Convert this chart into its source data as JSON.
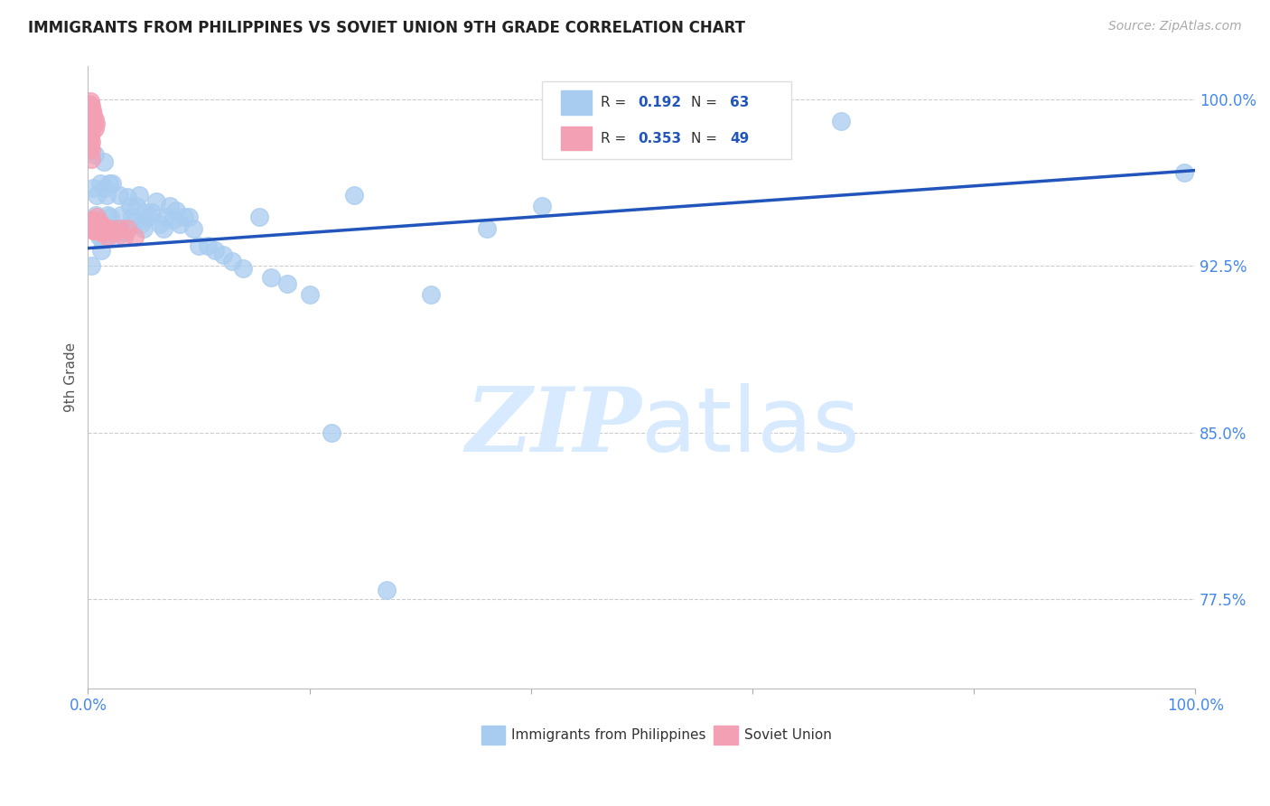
{
  "title": "IMMIGRANTS FROM PHILIPPINES VS SOVIET UNION 9TH GRADE CORRELATION CHART",
  "source": "Source: ZipAtlas.com",
  "ylabel": "9th Grade",
  "xlim": [
    0.0,
    1.0
  ],
  "ylim": [
    0.735,
    1.015
  ],
  "yticks": [
    0.775,
    0.85,
    0.925,
    1.0
  ],
  "ytick_labels": [
    "77.5%",
    "85.0%",
    "92.5%",
    "100.0%"
  ],
  "xticks": [
    0.0,
    0.2,
    0.4,
    0.6,
    0.8,
    1.0
  ],
  "xtick_labels": [
    "0.0%",
    "",
    "",
    "",
    "",
    "100.0%"
  ],
  "blue_color": "#A8CCF0",
  "pink_color": "#F4A0B4",
  "trend_color": "#2255BB",
  "title_color": "#222222",
  "axis_label_color": "#555555",
  "tick_label_color": "#4488EE",
  "grid_color": "#CCCCCC",
  "watermark_color": "#D8EAFF",
  "blue_scatter_x": [
    0.003,
    0.005,
    0.006,
    0.007,
    0.008,
    0.009,
    0.01,
    0.011,
    0.012,
    0.013,
    0.014,
    0.015,
    0.017,
    0.018,
    0.019,
    0.02,
    0.022,
    0.024,
    0.026,
    0.028,
    0.03,
    0.032,
    0.034,
    0.036,
    0.038,
    0.04,
    0.042,
    0.044,
    0.046,
    0.048,
    0.05,
    0.052,
    0.055,
    0.058,
    0.062,
    0.065,
    0.068,
    0.071,
    0.074,
    0.077,
    0.08,
    0.083,
    0.087,
    0.091,
    0.095,
    0.1,
    0.108,
    0.115,
    0.122,
    0.13,
    0.14,
    0.155,
    0.165,
    0.18,
    0.2,
    0.22,
    0.24,
    0.27,
    0.31,
    0.36,
    0.41,
    0.68,
    0.99
  ],
  "blue_scatter_y": [
    0.925,
    0.96,
    0.975,
    0.948,
    0.957,
    0.942,
    0.938,
    0.962,
    0.932,
    0.937,
    0.972,
    0.96,
    0.957,
    0.948,
    0.962,
    0.947,
    0.962,
    0.942,
    0.938,
    0.957,
    0.948,
    0.942,
    0.94,
    0.956,
    0.952,
    0.947,
    0.945,
    0.952,
    0.957,
    0.944,
    0.942,
    0.949,
    0.947,
    0.949,
    0.954,
    0.944,
    0.942,
    0.947,
    0.952,
    0.946,
    0.95,
    0.944,
    0.947,
    0.947,
    0.942,
    0.934,
    0.934,
    0.932,
    0.93,
    0.927,
    0.924,
    0.947,
    0.92,
    0.917,
    0.912,
    0.85,
    0.957,
    0.779,
    0.912,
    0.942,
    0.952,
    0.99,
    0.967
  ],
  "pink_scatter_x": [
    0.001,
    0.001,
    0.001,
    0.001,
    0.001,
    0.002,
    0.002,
    0.002,
    0.002,
    0.002,
    0.002,
    0.003,
    0.003,
    0.003,
    0.003,
    0.003,
    0.003,
    0.003,
    0.004,
    0.004,
    0.004,
    0.004,
    0.005,
    0.005,
    0.005,
    0.005,
    0.006,
    0.006,
    0.006,
    0.007,
    0.007,
    0.007,
    0.008,
    0.008,
    0.009,
    0.009,
    0.01,
    0.011,
    0.012,
    0.013,
    0.014,
    0.015,
    0.018,
    0.02,
    0.024,
    0.028,
    0.032,
    0.036,
    0.042
  ],
  "pink_scatter_y": [
    0.998,
    0.994,
    0.99,
    0.986,
    0.982,
    0.999,
    0.995,
    0.991,
    0.987,
    0.983,
    0.979,
    0.997,
    0.993,
    0.989,
    0.985,
    0.981,
    0.977,
    0.973,
    0.995,
    0.991,
    0.946,
    0.942,
    0.993,
    0.989,
    0.945,
    0.941,
    0.991,
    0.987,
    0.943,
    0.989,
    0.945,
    0.941,
    0.947,
    0.943,
    0.945,
    0.941,
    0.943,
    0.94,
    0.944,
    0.942,
    0.94,
    0.942,
    0.938,
    0.942,
    0.94,
    0.942,
    0.938,
    0.942,
    0.938
  ],
  "trend_x_start": 0.0,
  "trend_x_end": 1.0,
  "trend_y_start": 0.933,
  "trend_y_end": 0.968
}
